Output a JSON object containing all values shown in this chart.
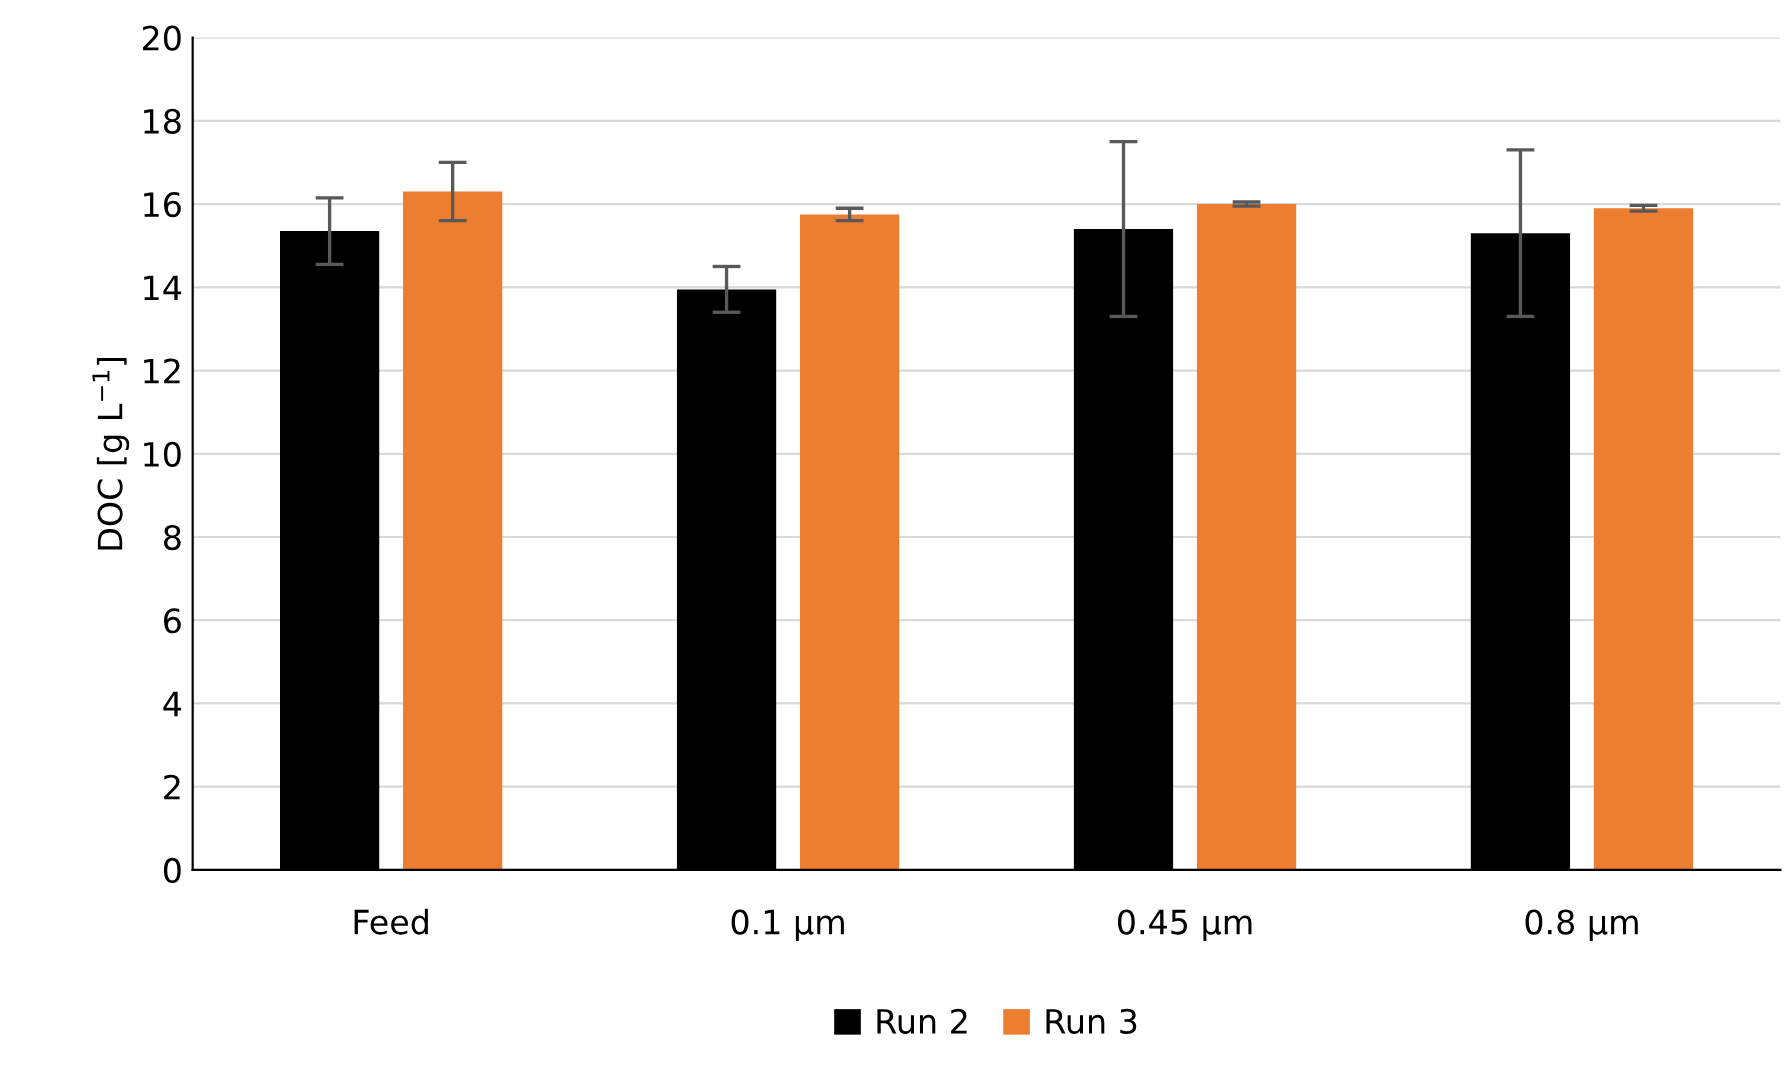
{
  "chart_data": {
    "type": "bar",
    "ylabel": "DOC [g L$^{−1}$]",
    "categories": [
      "Feed",
      "0.1 µm",
      "0.45 µm",
      "0.8 µm"
    ],
    "series": [
      {
        "name": "Run 2",
        "color": "#000000",
        "values": [
          15.35,
          13.95,
          15.4,
          15.3
        ],
        "errors": [
          0.8,
          0.55,
          2.1,
          2.0
        ]
      },
      {
        "name": "Run 3",
        "color": "#ed7d31",
        "values": [
          16.3,
          15.75,
          16.0,
          15.9
        ],
        "errors": [
          0.7,
          0.15,
          0.05,
          0.07
        ]
      }
    ],
    "ylim": [
      0,
      20
    ],
    "yticks": [
      0,
      2,
      4,
      6,
      8,
      10,
      12,
      14,
      16,
      18,
      20
    ],
    "grid": "y",
    "legend": "bottom"
  }
}
